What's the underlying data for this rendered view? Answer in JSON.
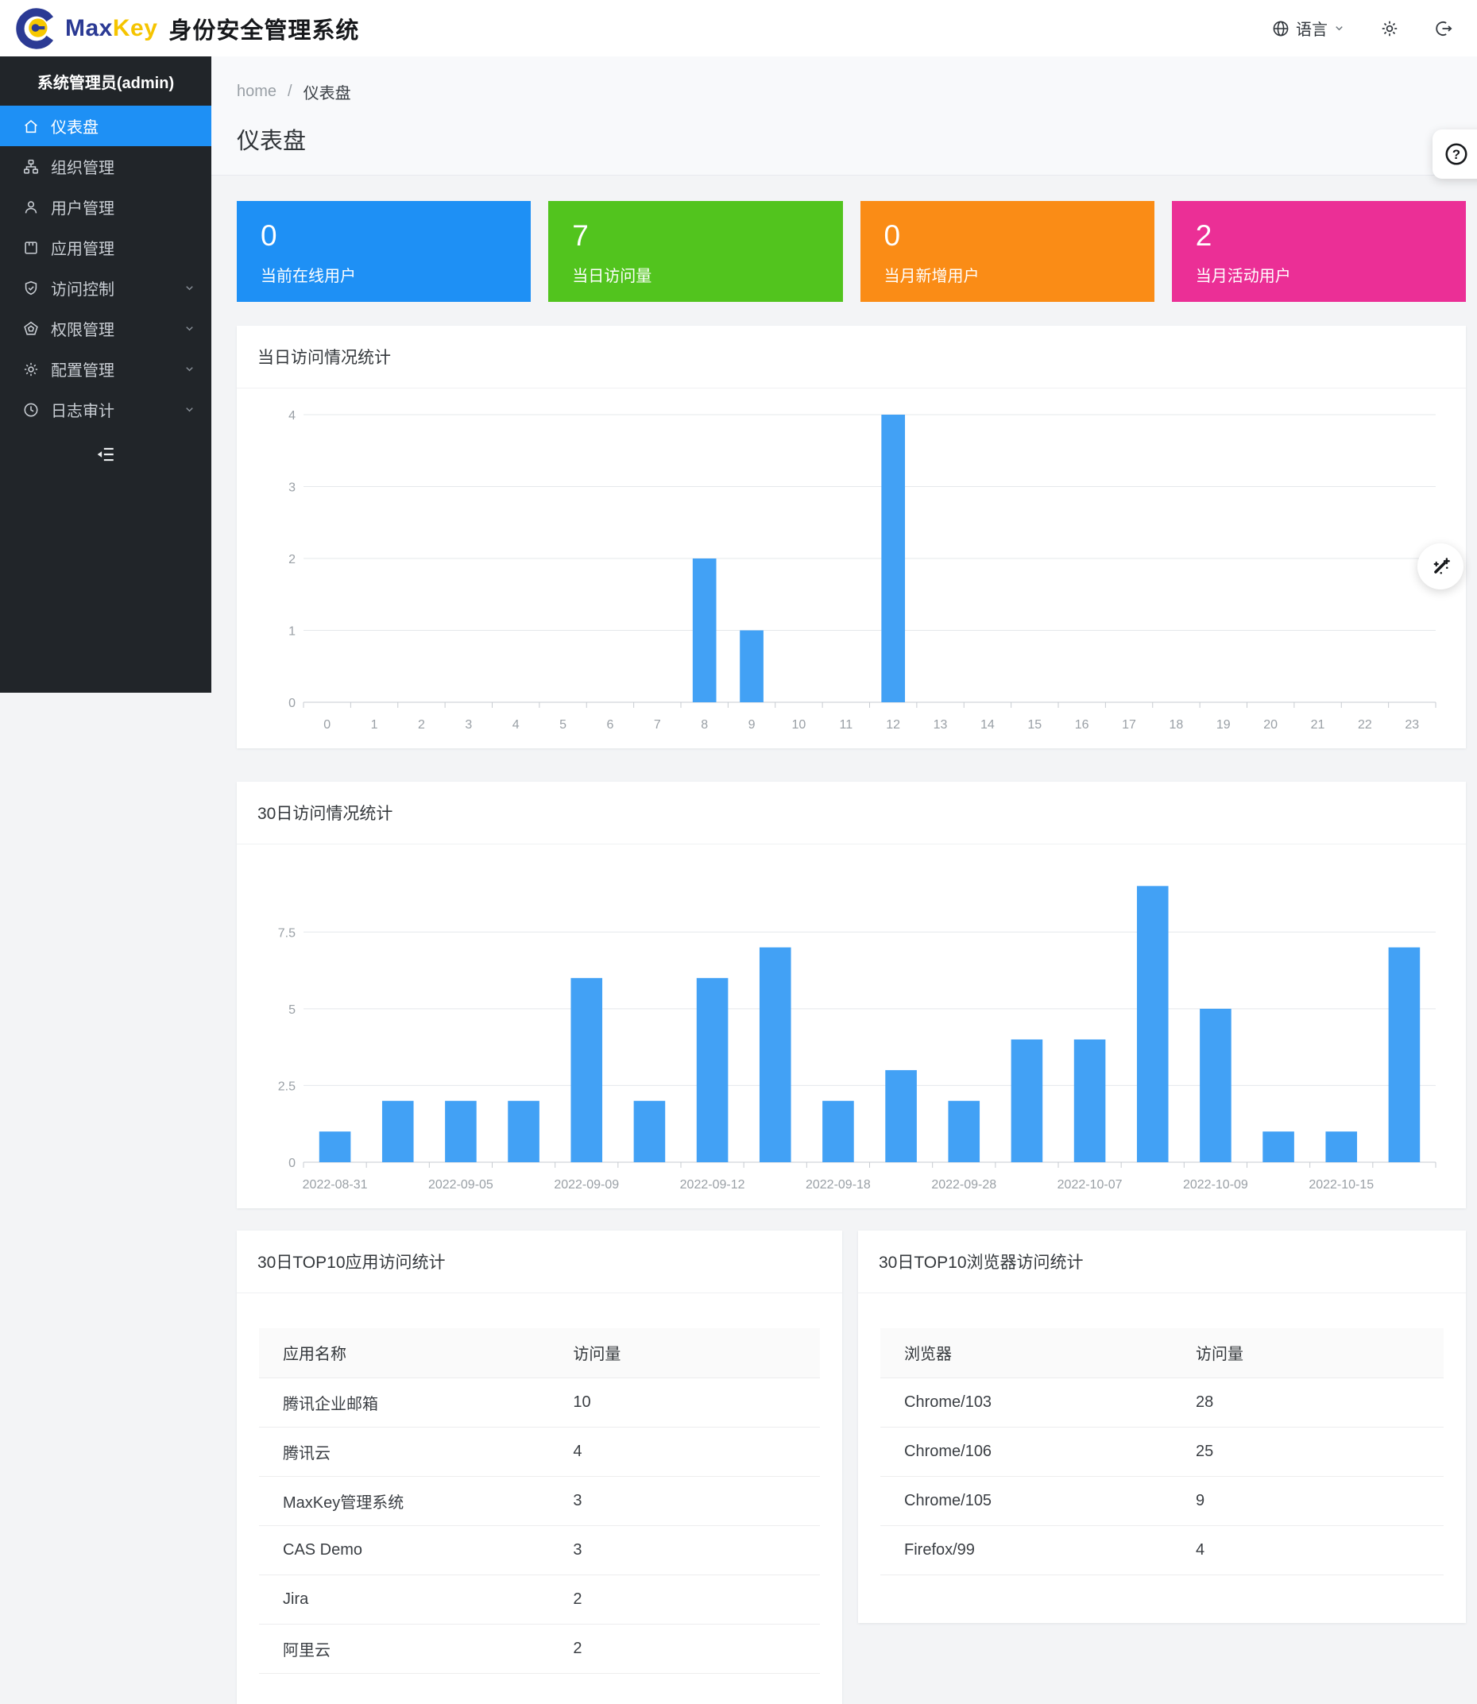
{
  "header": {
    "brand_max": "Max",
    "brand_key": "Key",
    "app_title": "身份安全管理系统",
    "language_label": "语言"
  },
  "icons": [
    "globe-icon",
    "gear-icon",
    "logout-icon",
    "home-icon",
    "org-icon",
    "user-icon",
    "app-icon",
    "shield-icon",
    "permission-icon",
    "config-gear-icon",
    "audit-clock-icon",
    "collapse-icon",
    "chevron-down-icon",
    "help-icon",
    "wand-icon"
  ],
  "sidebar": {
    "admin_label": "系统管理员(admin)",
    "items": [
      {
        "label": "仪表盘",
        "active": true,
        "expandable": false
      },
      {
        "label": "组织管理",
        "active": false,
        "expandable": false
      },
      {
        "label": "用户管理",
        "active": false,
        "expandable": false
      },
      {
        "label": "应用管理",
        "active": false,
        "expandable": false
      },
      {
        "label": "访问控制",
        "active": false,
        "expandable": true
      },
      {
        "label": "权限管理",
        "active": false,
        "expandable": true
      },
      {
        "label": "配置管理",
        "active": false,
        "expandable": true
      },
      {
        "label": "日志审计",
        "active": false,
        "expandable": true
      }
    ]
  },
  "breadcrumb": {
    "home": "home",
    "separator": "/",
    "current": "仪表盘"
  },
  "page": {
    "title": "仪表盘"
  },
  "stats": [
    {
      "value": "0",
      "label": "当前在线用户",
      "color": "#1e90f5"
    },
    {
      "value": "7",
      "label": "当日访问量",
      "color": "#52c41e"
    },
    {
      "value": "0",
      "label": "当月新增用户",
      "color": "#fa8c16"
    },
    {
      "value": "2",
      "label": "当月活动用户",
      "color": "#eb2f96"
    }
  ],
  "chart_data": [
    {
      "type": "bar",
      "title": "当日访问情况统计",
      "categories": [
        "0",
        "1",
        "2",
        "3",
        "4",
        "5",
        "6",
        "7",
        "8",
        "9",
        "10",
        "11",
        "12",
        "13",
        "14",
        "15",
        "16",
        "17",
        "18",
        "19",
        "20",
        "21",
        "22",
        "23"
      ],
      "values": [
        0,
        0,
        0,
        0,
        0,
        0,
        0,
        0,
        2,
        1,
        0,
        0,
        4,
        0,
        0,
        0,
        0,
        0,
        0,
        0,
        0,
        0,
        0,
        0
      ],
      "xlabel": "",
      "ylabel": "",
      "ylim": [
        0,
        4
      ],
      "yticks": [
        0,
        1,
        2,
        3,
        4
      ],
      "grid": true,
      "legend": "none",
      "bar_color": "#42a1f5",
      "bar_ratio": 0.5
    },
    {
      "type": "bar",
      "title": "30日访问情况统计",
      "categories": [
        "2022-08-31",
        "",
        "2022-09-05",
        "",
        "2022-09-09",
        "",
        "2022-09-12",
        "",
        "2022-09-18",
        "",
        "2022-09-28",
        "",
        "2022-10-07",
        "",
        "2022-10-09",
        "",
        "2022-10-15",
        ""
      ],
      "values": [
        1,
        2,
        2,
        2,
        6,
        2,
        6,
        7,
        2,
        3,
        2,
        4,
        4,
        9,
        5,
        1,
        1,
        7
      ],
      "xlabel": "",
      "ylabel": "",
      "ylim": [
        0,
        9.5
      ],
      "yticks": [
        0,
        2.5,
        5,
        7.5
      ],
      "grid": true,
      "legend": "none",
      "bar_color": "#42a1f5",
      "bar_ratio": 0.5
    }
  ],
  "tables": [
    {
      "title": "30日TOP10应用访问统计",
      "columns": [
        "应用名称",
        "访问量"
      ],
      "rows": [
        [
          "腾讯企业邮箱",
          "10"
        ],
        [
          "腾讯云",
          "4"
        ],
        [
          "MaxKey管理系统",
          "3"
        ],
        [
          "CAS Demo",
          "3"
        ],
        [
          "Jira",
          "2"
        ],
        [
          "阿里云",
          "2"
        ]
      ]
    },
    {
      "title": "30日TOP10浏览器访问统计",
      "columns": [
        "浏览器",
        "访问量"
      ],
      "rows": [
        [
          "Chrome/103",
          "28"
        ],
        [
          "Chrome/106",
          "25"
        ],
        [
          "Chrome/105",
          "9"
        ],
        [
          "Firefox/99",
          "4"
        ]
      ]
    }
  ]
}
